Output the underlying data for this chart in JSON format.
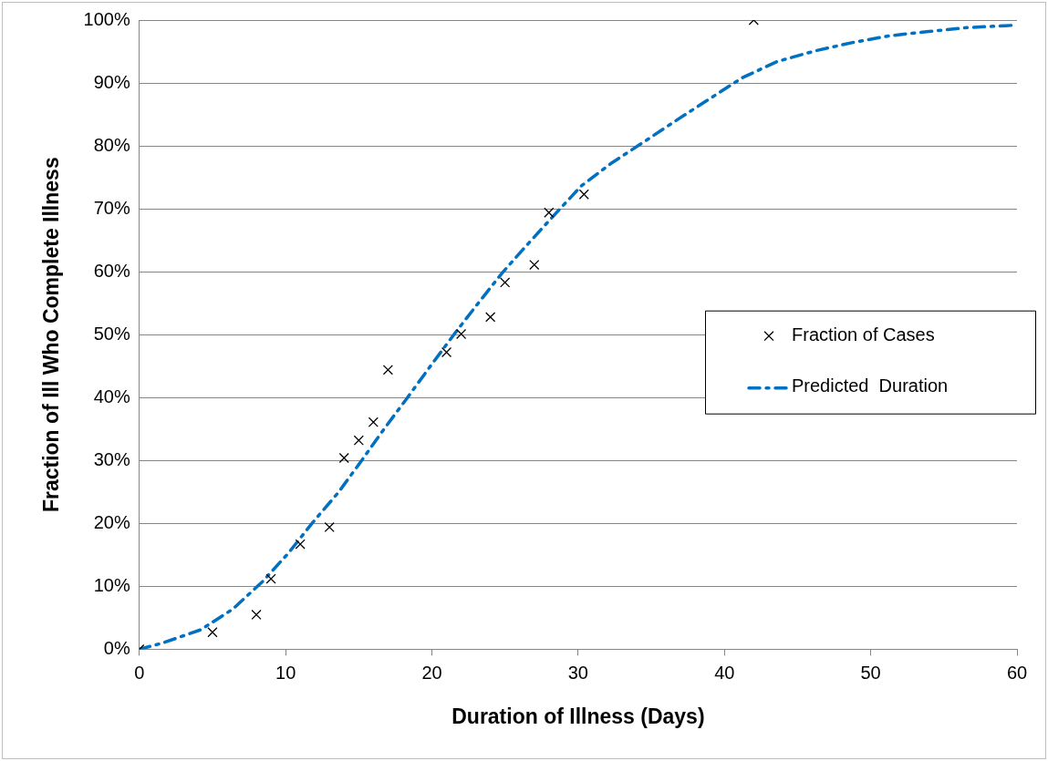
{
  "chart_data": {
    "type": "scatter",
    "xlabel": "Duration of Illness (Days)",
    "ylabel": "Fraction of Ill Who Complete Illness",
    "xlim": [
      0,
      60
    ],
    "xticks": [
      0,
      10,
      20,
      30,
      40,
      50,
      60
    ],
    "ylim": [
      0,
      100
    ],
    "yticks": [
      {
        "value": 0,
        "label": "0%"
      },
      {
        "value": 10,
        "label": "10%"
      },
      {
        "value": 20,
        "label": "20%"
      },
      {
        "value": 30,
        "label": "30%"
      },
      {
        "value": 40,
        "label": "40%"
      },
      {
        "value": 50,
        "label": "50%"
      },
      {
        "value": 60,
        "label": "60%"
      },
      {
        "value": 70,
        "label": "70%"
      },
      {
        "value": 80,
        "label": "80%"
      },
      {
        "value": 90,
        "label": "90%"
      },
      {
        "value": 100,
        "label": "100%"
      }
    ],
    "grid": "y",
    "legend": "right",
    "series": [
      {
        "name": "Fraction of Cases",
        "color": "#000000",
        "marker": "cross",
        "x": [
          0,
          5,
          8,
          9,
          11,
          13,
          14,
          15,
          16,
          17,
          21,
          22,
          24,
          25,
          27,
          28,
          30.4,
          42
        ],
        "values": [
          0,
          2.7,
          5.5,
          11.2,
          16.7,
          19.4,
          30.4,
          33.2,
          36.1,
          44.4,
          47.2,
          50.1,
          52.8,
          58.3,
          61.1,
          69.4,
          72.3,
          100
        ]
      },
      {
        "name": "Predicted  Duration",
        "type": "line",
        "color": "#0070c0",
        "marker": "none",
        "line_style": "dashdot",
        "x": [
          0,
          1.6,
          4.2,
          6.4,
          8.4,
          10.2,
          11.8,
          13.6,
          15.2,
          16.7,
          18.3,
          19.9,
          21.5,
          23.1,
          24.8,
          26.6,
          28.4,
          30.2,
          32.3,
          34.6,
          36.8,
          39,
          41.2,
          43.6,
          46.2,
          48.7,
          51.3,
          54,
          56.6,
          59.2,
          60
        ],
        "values": [
          0,
          1,
          3.1,
          6.4,
          10.7,
          15.3,
          20,
          24.9,
          30,
          34.9,
          39.9,
          45,
          50,
          54.8,
          59.8,
          64.5,
          69.1,
          73.6,
          77.3,
          80.8,
          84.2,
          87.5,
          90.8,
          93.4,
          95.1,
          96.4,
          97.5,
          98.2,
          98.8,
          99.1,
          99.2
        ]
      }
    ]
  }
}
